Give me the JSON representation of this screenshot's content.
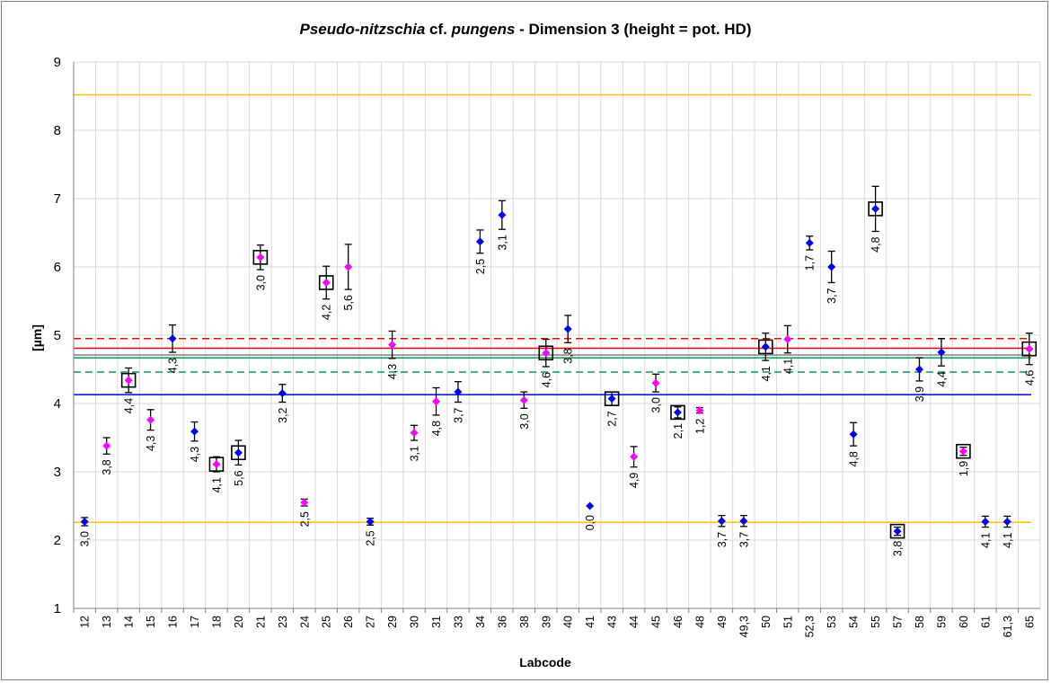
{
  "chart_data": {
    "type": "scatter",
    "title": {
      "italic_part1": "Pseudo-nitzschia",
      "normal_part": " cf. ",
      "italic_part2": "pungens",
      "rest": " - Dimension 3 (height = pot. HD)"
    },
    "xlabel": "Labcode",
    "ylabel": "[µm]",
    "ylim": [
      1,
      9
    ],
    "yticks": [
      "1",
      "2",
      "3",
      "4",
      "5",
      "6",
      "7",
      "8",
      "9"
    ],
    "grid": true,
    "categories": [
      "12",
      "13",
      "14",
      "15",
      "16",
      "17",
      "18",
      "20",
      "21",
      "23",
      "24",
      "25",
      "26",
      "27",
      "29",
      "30",
      "31",
      "33",
      "34",
      "36",
      "38",
      "39",
      "40",
      "41",
      "43",
      "44",
      "45",
      "46",
      "48",
      "49",
      "49,3",
      "50",
      "51",
      "52,3",
      "53",
      "54",
      "55",
      "57",
      "58",
      "59",
      "60",
      "61",
      "61,3",
      "65"
    ],
    "points": [
      {
        "x": "12",
        "y": 2.27,
        "err": 0.06,
        "color": "blue",
        "boxed": false,
        "label": "3,0"
      },
      {
        "x": "13",
        "y": 3.38,
        "err": 0.12,
        "color": "magenta",
        "boxed": false,
        "label": "3,8"
      },
      {
        "x": "14",
        "y": 4.34,
        "err": 0.18,
        "color": "magenta",
        "boxed": true,
        "label": "4,4"
      },
      {
        "x": "15",
        "y": 3.76,
        "err": 0.15,
        "color": "magenta",
        "boxed": false,
        "label": "4,3"
      },
      {
        "x": "16",
        "y": 4.95,
        "err": 0.2,
        "color": "blue",
        "boxed": false,
        "label": "4,3"
      },
      {
        "x": "17",
        "y": 3.59,
        "err": 0.14,
        "color": "blue",
        "boxed": false,
        "label": "4,3"
      },
      {
        "x": "18",
        "y": 3.11,
        "err": 0.11,
        "color": "magenta",
        "boxed": true,
        "label": "4,1"
      },
      {
        "x": "20",
        "y": 3.28,
        "err": 0.18,
        "color": "blue",
        "boxed": true,
        "label": "5,6"
      },
      {
        "x": "21",
        "y": 6.14,
        "err": 0.18,
        "color": "magenta",
        "boxed": true,
        "label": "3,0"
      },
      {
        "x": "23",
        "y": 4.15,
        "err": 0.13,
        "color": "blue",
        "boxed": false,
        "label": "3,2"
      },
      {
        "x": "24",
        "y": 2.55,
        "err": 0.05,
        "color": "magenta",
        "boxed": false,
        "label": "2,5"
      },
      {
        "x": "25",
        "y": 5.77,
        "err": 0.24,
        "color": "magenta",
        "boxed": true,
        "label": "4,2"
      },
      {
        "x": "26",
        "y": 6.0,
        "err": 0.33,
        "color": "magenta",
        "boxed": false,
        "label": "5,6"
      },
      {
        "x": "27",
        "y": 2.27,
        "err": 0.05,
        "color": "blue",
        "boxed": false,
        "label": "2,5"
      },
      {
        "x": "29",
        "y": 4.86,
        "err": 0.2,
        "color": "magenta",
        "boxed": false,
        "label": "4,3"
      },
      {
        "x": "30",
        "y": 3.57,
        "err": 0.11,
        "color": "magenta",
        "boxed": false,
        "label": "3,1"
      },
      {
        "x": "31",
        "y": 4.03,
        "err": 0.2,
        "color": "magenta",
        "boxed": false,
        "label": "4,8"
      },
      {
        "x": "33",
        "y": 4.17,
        "err": 0.15,
        "color": "blue",
        "boxed": false,
        "label": "3,7"
      },
      {
        "x": "34",
        "y": 6.37,
        "err": 0.17,
        "color": "blue",
        "boxed": false,
        "label": "2,5"
      },
      {
        "x": "36",
        "y": 6.76,
        "err": 0.21,
        "color": "blue",
        "boxed": false,
        "label": "3,1"
      },
      {
        "x": "38",
        "y": 4.05,
        "err": 0.12,
        "color": "magenta",
        "boxed": false,
        "label": "3,0"
      },
      {
        "x": "39",
        "y": 4.74,
        "err": 0.2,
        "color": "magenta",
        "boxed": true,
        "label": "4,6"
      },
      {
        "x": "40",
        "y": 5.09,
        "err": 0.2,
        "color": "blue",
        "boxed": false,
        "label": "3,8"
      },
      {
        "x": "41",
        "y": 2.5,
        "err": 0,
        "color": "blue",
        "boxed": false,
        "label": "0,0"
      },
      {
        "x": "43",
        "y": 4.07,
        "err": 0.1,
        "color": "blue",
        "boxed": true,
        "label": "2,7"
      },
      {
        "x": "44",
        "y": 3.22,
        "err": 0.15,
        "color": "magenta",
        "boxed": false,
        "label": "4,9"
      },
      {
        "x": "45",
        "y": 4.3,
        "err": 0.13,
        "color": "magenta",
        "boxed": false,
        "label": "3,0"
      },
      {
        "x": "46",
        "y": 3.87,
        "err": 0.08,
        "color": "blue",
        "boxed": true,
        "label": "2,1"
      },
      {
        "x": "48",
        "y": 3.9,
        "err": 0.04,
        "color": "magenta",
        "boxed": false,
        "label": "1,2"
      },
      {
        "x": "49",
        "y": 2.28,
        "err": 0.08,
        "color": "blue",
        "boxed": false,
        "label": "3,7"
      },
      {
        "x": "49,3",
        "y": 2.28,
        "err": 0.08,
        "color": "blue",
        "boxed": false,
        "label": "3,7"
      },
      {
        "x": "50",
        "y": 4.83,
        "err": 0.2,
        "color": "blue",
        "boxed": true,
        "label": "4,1"
      },
      {
        "x": "51",
        "y": 4.94,
        "err": 0.2,
        "color": "magenta",
        "boxed": false,
        "label": "4,1"
      },
      {
        "x": "52,3",
        "y": 6.35,
        "err": 0.1,
        "color": "blue",
        "boxed": false,
        "label": "1,7"
      },
      {
        "x": "53",
        "y": 6.0,
        "err": 0.23,
        "color": "blue",
        "boxed": false,
        "label": "3,7"
      },
      {
        "x": "54",
        "y": 3.55,
        "err": 0.17,
        "color": "blue",
        "boxed": false,
        "label": "4,8"
      },
      {
        "x": "55",
        "y": 6.85,
        "err": 0.33,
        "color": "blue",
        "boxed": true,
        "label": "4,8"
      },
      {
        "x": "57",
        "y": 2.13,
        "err": 0.06,
        "color": "blue",
        "boxed": true,
        "label": "3,8"
      },
      {
        "x": "58",
        "y": 4.5,
        "err": 0.17,
        "color": "blue",
        "boxed": false,
        "label": "3,9"
      },
      {
        "x": "59",
        "y": 4.75,
        "err": 0.2,
        "color": "blue",
        "boxed": false,
        "label": "4,4"
      },
      {
        "x": "60",
        "y": 3.3,
        "err": 0.06,
        "color": "magenta",
        "boxed": true,
        "label": "1,9"
      },
      {
        "x": "61",
        "y": 2.27,
        "err": 0.08,
        "color": "blue",
        "boxed": false,
        "label": "4,1"
      },
      {
        "x": "61,3",
        "y": 2.27,
        "err": 0.08,
        "color": "blue",
        "boxed": false,
        "label": "4,1"
      },
      {
        "x": "65",
        "y": 4.8,
        "err": 0.23,
        "color": "magenta",
        "boxed": true,
        "label": "4,6"
      }
    ],
    "reference_lines": [
      {
        "y": 8.52,
        "color": "#ffc000",
        "dashed": false
      },
      {
        "y": 2.26,
        "color": "#ffc000",
        "dashed": false
      },
      {
        "y": 4.95,
        "color": "#ff0000",
        "dashed": true
      },
      {
        "y": 4.81,
        "color": "#ff0000",
        "dashed": false
      },
      {
        "y": 4.71,
        "color": "#808080",
        "dashed": false
      },
      {
        "y": 4.67,
        "color": "#00a050",
        "dashed": false
      },
      {
        "y": 4.46,
        "color": "#00a050",
        "dashed": true
      },
      {
        "y": 4.13,
        "color": "#0000ff",
        "dashed": false
      }
    ],
    "colors": {
      "blue": "#0000ff",
      "magenta": "#ff00ff",
      "grid": "#d9d9d9",
      "axis": "#808080"
    }
  }
}
